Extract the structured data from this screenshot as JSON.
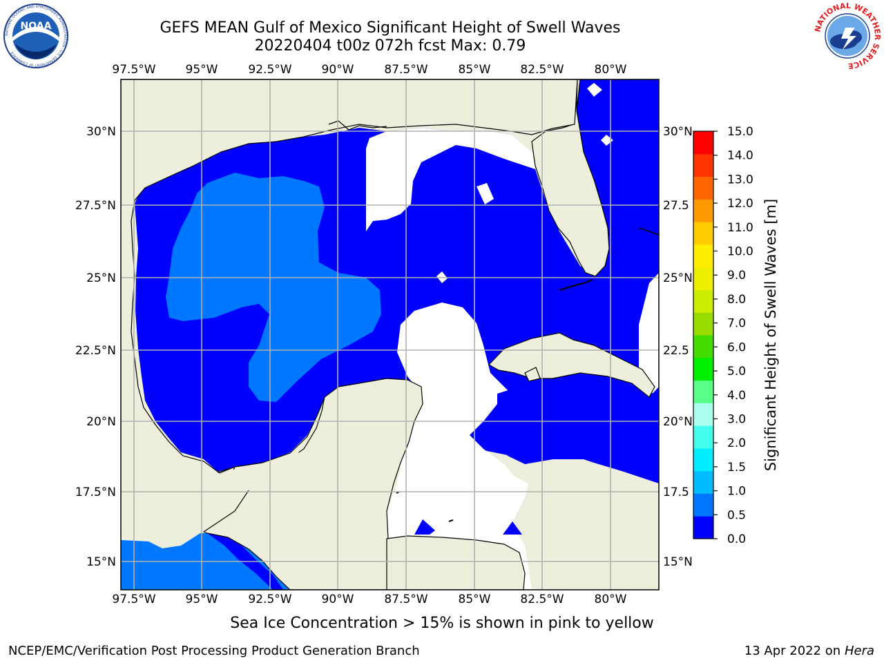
{
  "title_line1": "GEFS MEAN Gulf of Mexico Significant Height of Swell Waves",
  "title_line2": "20220404 t00z 072h fcst   Max: 0.79",
  "sea_ice_note": "Sea Ice Concentration > 15% is shown in pink to yellow",
  "footer": {
    "left": "NCEP/EMC/Verification Post Processing Product Generation Branch",
    "date": "13 Apr 2022 on ",
    "machine": "Hera"
  },
  "logos": {
    "noaa_text": "NOAA",
    "noaa_ring": "NATIONAL OCEANIC AND ATMOSPHERIC ADMINISTRATION · U.S. DEPARTMENT OF COMMERCE",
    "nws_ring": "NATIONAL WEATHER SERVICE"
  },
  "map": {
    "lon_labels": [
      "97.5°W",
      "95°W",
      "92.5°W",
      "90°W",
      "87.5°W",
      "85°W",
      "82.5°W",
      "80°W"
    ],
    "lat_labels": [
      "30°N",
      "27.5°N",
      "25°N",
      "22.5°N",
      "20°N",
      "17.5°N",
      "15°N"
    ],
    "lat_labels_right": [
      "30°N",
      "27.5",
      "25°N",
      "22.5",
      "20°N",
      "17.5",
      "15°N"
    ]
  },
  "colorbar": {
    "label": "Significant Height of Swell Waves [m]",
    "ticks": [
      "0.0",
      "0.5",
      "1.0",
      "1.5",
      "2.0",
      "3.0",
      "4.0",
      "5.0",
      "6.0",
      "7.0",
      "8.0",
      "9.0",
      "10.0",
      "11.0",
      "12.0",
      "13.0",
      "14.0",
      "15.0"
    ],
    "colors": [
      "#0000ff",
      "#0077ff",
      "#00bbff",
      "#00eeff",
      "#44ffee",
      "#aaffee",
      "#55ff88",
      "#00ee00",
      "#44dd00",
      "#99dd00",
      "#ccee00",
      "#eeee00",
      "#ffee00",
      "#ffcc00",
      "#ff9900",
      "#ff6600",
      "#ff3300",
      "#ff0000"
    ]
  },
  "colors": {
    "land": "#eeeedd",
    "swell_0_0.5": "#0000ff",
    "swell_0.5_1.0": "#0077ff",
    "missing": "#ffffff",
    "grid": "#b0b0b0"
  }
}
